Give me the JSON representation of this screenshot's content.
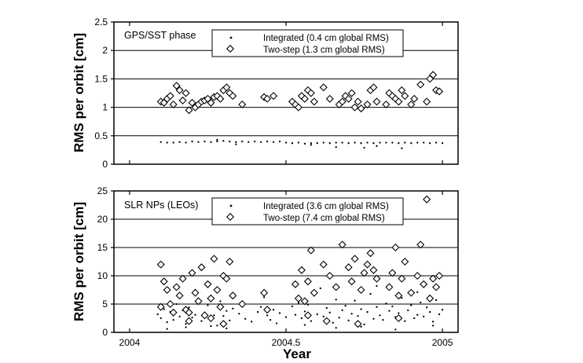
{
  "figure": {
    "xlabel": "Year",
    "x_ticks": [
      "2004",
      "2004.5",
      "2005"
    ]
  },
  "chart_data": [
    {
      "type": "scatter",
      "title": "GPS/SST phase",
      "xlabel": "Year",
      "ylabel": "RMS per orbit [cm]",
      "xlim": [
        2003.95,
        2005.05
      ],
      "ylim": [
        0,
        2.5
      ],
      "y_ticks": [
        "0",
        "0.5",
        "1",
        "1.5",
        "2",
        "2.5"
      ],
      "grid": "horizontal",
      "legend_position": "top-right",
      "series": [
        {
          "name": "Integrated (0.4 cm global RMS)",
          "marker": "dot",
          "x": [
            2004.1,
            2004.12,
            2004.14,
            2004.16,
            2004.18,
            2004.2,
            2004.22,
            2004.24,
            2004.26,
            2004.28,
            2004.3,
            2004.32,
            2004.34,
            2004.36,
            2004.38,
            2004.4,
            2004.42,
            2004.44,
            2004.46,
            2004.48,
            2004.5,
            2004.52,
            2004.54,
            2004.56,
            2004.58,
            2004.6,
            2004.62,
            2004.64,
            2004.66,
            2004.68,
            2004.7,
            2004.72,
            2004.74,
            2004.76,
            2004.78,
            2004.8,
            2004.82,
            2004.84,
            2004.86,
            2004.88,
            2004.9,
            2004.92,
            2004.94,
            2004.96,
            2004.98,
            2005.0,
            2004.34,
            2004.66,
            2004.75,
            2004.79,
            2004.87,
            2004.28,
            2004.58
          ],
          "y": [
            0.39,
            0.38,
            0.38,
            0.39,
            0.38,
            0.4,
            0.39,
            0.4,
            0.39,
            0.4,
            0.41,
            0.4,
            0.39,
            0.4,
            0.39,
            0.4,
            0.39,
            0.4,
            0.39,
            0.4,
            0.38,
            0.37,
            0.38,
            0.36,
            0.37,
            0.37,
            0.38,
            0.37,
            0.38,
            0.38,
            0.37,
            0.38,
            0.37,
            0.38,
            0.37,
            0.38,
            0.38,
            0.38,
            0.37,
            0.38,
            0.37,
            0.38,
            0.38,
            0.37,
            0.38,
            0.37,
            0.35,
            0.3,
            0.29,
            0.32,
            0.28,
            0.43,
            0.34
          ]
        },
        {
          "name": "Two-step (1.3 cm global RMS)",
          "marker": "diamond",
          "x": [
            2004.1,
            2004.11,
            2004.12,
            2004.13,
            2004.14,
            2004.15,
            2004.16,
            2004.17,
            2004.18,
            2004.19,
            2004.2,
            2004.21,
            2004.22,
            2004.23,
            2004.24,
            2004.25,
            2004.26,
            2004.27,
            2004.28,
            2004.29,
            2004.3,
            2004.31,
            2004.32,
            2004.33,
            2004.36,
            2004.43,
            2004.44,
            2004.46,
            2004.52,
            2004.53,
            2004.54,
            2004.55,
            2004.56,
            2004.57,
            2004.58,
            2004.59,
            2004.62,
            2004.64,
            2004.67,
            2004.68,
            2004.69,
            2004.7,
            2004.71,
            2004.72,
            2004.73,
            2004.74,
            2004.76,
            2004.77,
            2004.78,
            2004.79,
            2004.82,
            2004.83,
            2004.84,
            2004.85,
            2004.86,
            2004.87,
            2004.88,
            2004.9,
            2004.91,
            2004.93,
            2004.95,
            2004.96,
            2004.97,
            2004.98,
            2004.99
          ],
          "y": [
            1.1,
            1.08,
            1.15,
            1.2,
            1.05,
            1.38,
            1.3,
            1.12,
            1.25,
            0.95,
            1.08,
            1.0,
            1.05,
            1.1,
            1.12,
            1.15,
            1.08,
            1.18,
            1.2,
            1.15,
            1.3,
            1.35,
            1.25,
            1.2,
            1.05,
            1.18,
            1.15,
            1.2,
            1.1,
            1.05,
            1.0,
            1.2,
            1.15,
            1.3,
            1.25,
            1.1,
            1.35,
            1.15,
            1.05,
            1.1,
            1.2,
            1.15,
            1.25,
            1.0,
            1.1,
            0.98,
            1.05,
            1.3,
            1.35,
            1.1,
            1.05,
            1.25,
            1.2,
            1.15,
            1.1,
            1.3,
            1.2,
            1.05,
            1.15,
            1.4,
            1.1,
            1.5,
            1.57,
            1.3,
            1.28
          ]
        }
      ]
    },
    {
      "type": "scatter",
      "title": "SLR NPs (LEOs)",
      "xlabel": "Year",
      "ylabel": "RMS per orbit [cm]",
      "xlim": [
        2003.95,
        2005.05
      ],
      "ylim": [
        0,
        25
      ],
      "y_ticks": [
        "0",
        "5",
        "10",
        "15",
        "20",
        "25"
      ],
      "grid": "horizontal",
      "legend_position": "top-right",
      "series": [
        {
          "name": "Integrated (3.6 cm global RMS)",
          "marker": "dot",
          "x": [
            2004.09,
            2004.1,
            2004.11,
            2004.12,
            2004.13,
            2004.14,
            2004.15,
            2004.16,
            2004.17,
            2004.18,
            2004.19,
            2004.2,
            2004.21,
            2004.22,
            2004.23,
            2004.24,
            2004.25,
            2004.26,
            2004.27,
            2004.28,
            2004.29,
            2004.3,
            2004.31,
            2004.32,
            2004.33,
            2004.35,
            2004.37,
            2004.39,
            2004.41,
            2004.42,
            2004.43,
            2004.44,
            2004.45,
            2004.46,
            2004.47,
            2004.48,
            2004.5,
            2004.52,
            2004.53,
            2004.54,
            2004.55,
            2004.56,
            2004.57,
            2004.58,
            2004.59,
            2004.6,
            2004.62,
            2004.63,
            2004.64,
            2004.65,
            2004.66,
            2004.67,
            2004.68,
            2004.69,
            2004.7,
            2004.71,
            2004.72,
            2004.73,
            2004.74,
            2004.75,
            2004.76,
            2004.77,
            2004.78,
            2004.79,
            2004.8,
            2004.81,
            2004.82,
            2004.83,
            2004.84,
            2004.85,
            2004.86,
            2004.87,
            2004.88,
            2004.89,
            2004.9,
            2004.91,
            2004.92,
            2004.93,
            2004.94,
            2004.95,
            2004.96,
            2004.97,
            2004.98,
            2004.99,
            2005.0,
            2004.12,
            2004.18,
            2004.26,
            2004.31,
            2004.56,
            2004.66,
            2004.74,
            2004.85,
            2004.97,
            2004.21,
            2004.43,
            2004.61,
            2004.79,
            2004.92
          ],
          "y": [
            3.2,
            2.5,
            4.1,
            1.8,
            3.6,
            2.2,
            5.0,
            2.8,
            3.9,
            1.5,
            4.4,
            2.6,
            3.1,
            6.0,
            2.0,
            3.5,
            4.8,
            2.3,
            3.0,
            1.2,
            5.5,
            2.9,
            3.8,
            2.1,
            4.2,
            3.3,
            2.4,
            1.9,
            3.6,
            4.5,
            6.2,
            3.0,
            2.2,
            4.0,
            1.6,
            3.4,
            2.7,
            4.6,
            3.1,
            5.2,
            2.5,
            3.7,
            4.9,
            2.0,
            6.5,
            3.2,
            2.8,
            4.3,
            3.5,
            1.7,
            5.8,
            2.6,
            3.9,
            4.7,
            2.1,
            3.3,
            5.6,
            2.9,
            4.1,
            1.4,
            3.6,
            6.8,
            2.4,
            4.5,
            3.0,
            2.2,
            5.1,
            3.8,
            4.6,
            2.7,
            3.4,
            6.1,
            2.0,
            3.9,
            4.8,
            2.5,
            3.1,
            5.3,
            2.8,
            4.4,
            3.6,
            1.9,
            5.7,
            3.2,
            4.0,
            0.6,
            0.9,
            1.1,
            0.7,
            1.3,
            0.8,
            1.0,
            0.5,
            1.2,
            7.5,
            7.0,
            7.8,
            8.2,
            7.1
          ]
        },
        {
          "name": "Two-step (7.4 cm global RMS)",
          "marker": "diamond",
          "x": [
            2004.1,
            2004.11,
            2004.12,
            2004.13,
            2004.14,
            2004.15,
            2004.16,
            2004.17,
            2004.18,
            2004.19,
            2004.2,
            2004.21,
            2004.22,
            2004.23,
            2004.24,
            2004.25,
            2004.26,
            2004.27,
            2004.28,
            2004.29,
            2004.3,
            2004.31,
            2004.32,
            2004.33,
            2004.36,
            2004.43,
            2004.44,
            2004.53,
            2004.54,
            2004.55,
            2004.56,
            2004.57,
            2004.58,
            2004.59,
            2004.62,
            2004.64,
            2004.66,
            2004.68,
            2004.7,
            2004.71,
            2004.72,
            2004.74,
            2004.75,
            2004.76,
            2004.77,
            2004.78,
            2004.79,
            2004.83,
            2004.84,
            2004.85,
            2004.86,
            2004.87,
            2004.88,
            2004.9,
            2004.92,
            2004.93,
            2004.94,
            2004.96,
            2004.97,
            2004.98,
            2004.99,
            2004.1,
            2004.19,
            2004.26,
            2004.3,
            2004.57,
            2004.63,
            2004.73,
            2004.86,
            2004.95
          ],
          "y": [
            12.0,
            9.0,
            7.5,
            5.0,
            3.5,
            8.0,
            6.5,
            9.5,
            4.0,
            2.0,
            10.5,
            7.0,
            5.5,
            11.5,
            3.0,
            8.5,
            6.0,
            13.0,
            7.5,
            4.5,
            10.0,
            9.5,
            12.5,
            6.5,
            5.0,
            7.0,
            4.0,
            8.5,
            6.0,
            11.0,
            5.5,
            9.0,
            14.5,
            7.0,
            12.0,
            10.0,
            8.0,
            15.5,
            11.5,
            9.0,
            13.0,
            7.5,
            10.5,
            12.0,
            14.0,
            11.0,
            9.5,
            8.0,
            10.5,
            15.0,
            6.5,
            9.5,
            12.5,
            7.0,
            10.0,
            15.5,
            8.5,
            6.0,
            9.5,
            8.0,
            10.0,
            4.5,
            3.5,
            2.5,
            1.5,
            3.0,
            2.0,
            1.5,
            2.5,
            23.5
          ]
        }
      ]
    }
  ]
}
